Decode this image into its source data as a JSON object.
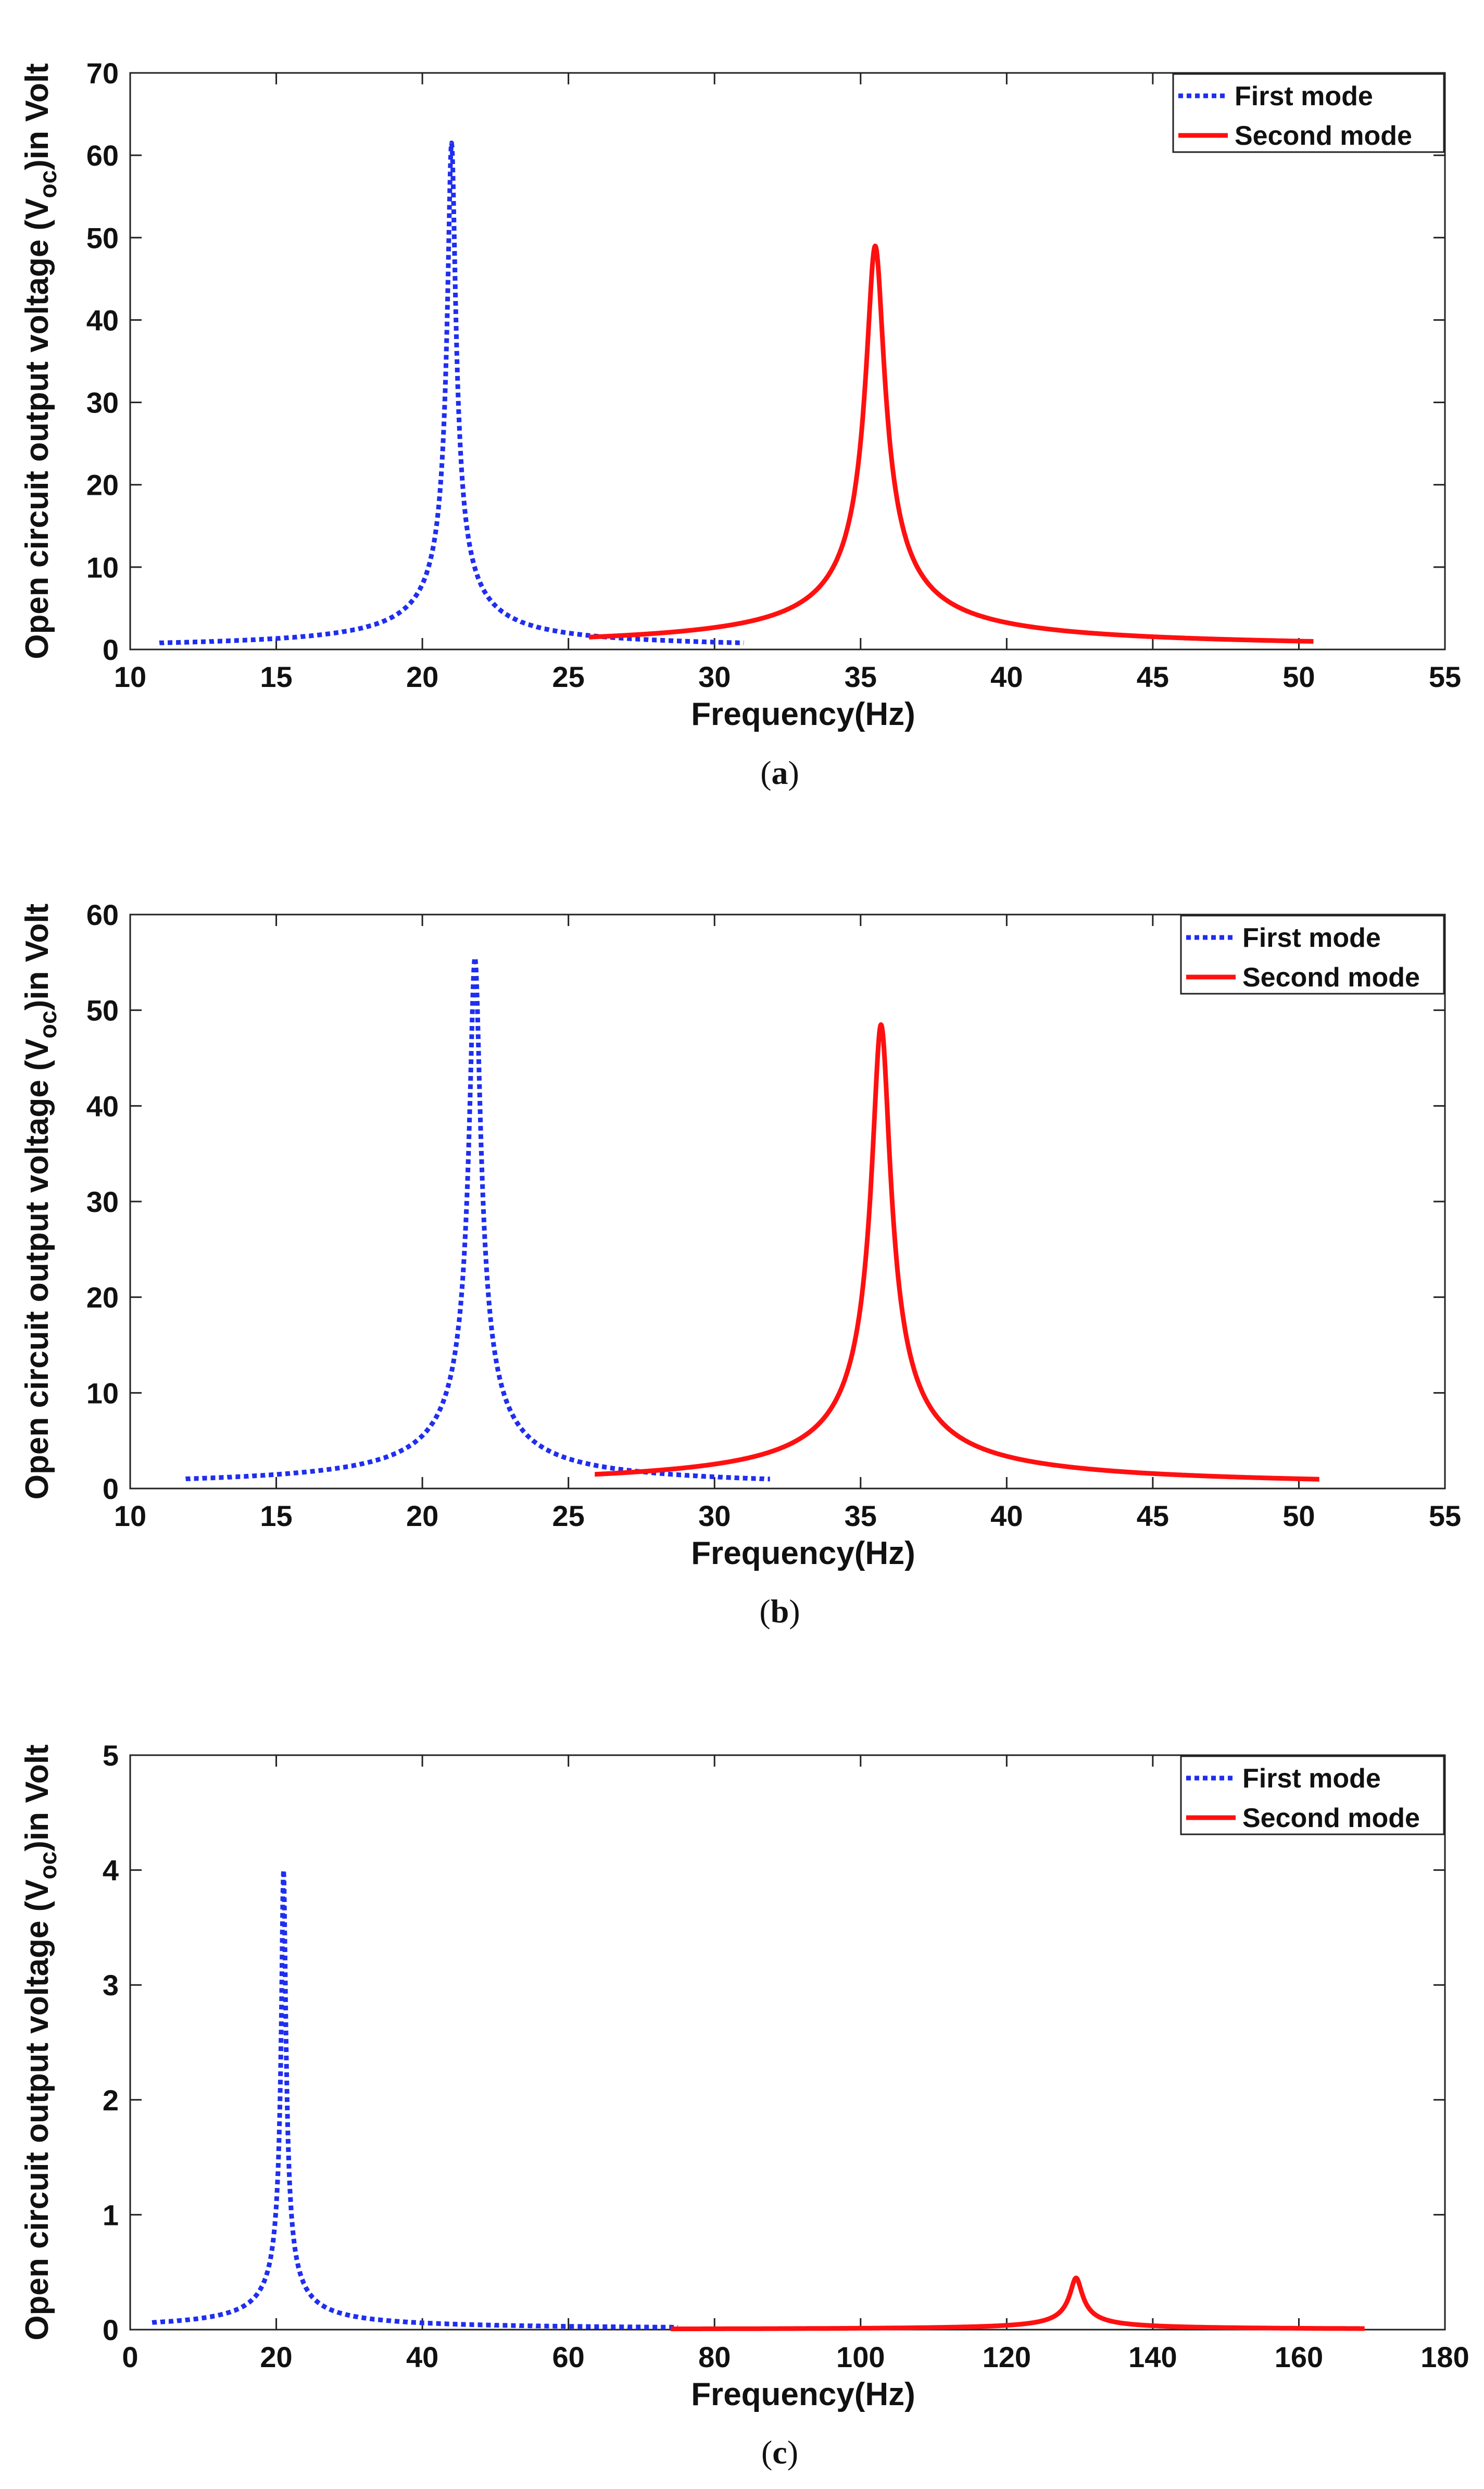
{
  "colors": {
    "first": "#1f2ef0",
    "second": "#ff1010",
    "axis": "#222222"
  },
  "chart_data": [
    {
      "type": "line",
      "panel": "a",
      "caption": {
        "open": "(",
        "letter": "a",
        "close": ")"
      },
      "xlabel": "Frequency(Hz)",
      "ylabel": {
        "prefix": "Open circuit output voltage (V",
        "sub": "oc",
        "suffix": ")in Volt"
      },
      "xlim": [
        10,
        55
      ],
      "ylim": [
        0,
        70
      ],
      "xticks": [
        10,
        15,
        20,
        25,
        30,
        35,
        40,
        45,
        50,
        55
      ],
      "yticks": [
        0,
        10,
        20,
        30,
        40,
        50,
        60,
        70
      ],
      "legend_position": "top-right",
      "series": [
        {
          "name": "First mode",
          "style": "dotted",
          "color": "#1f2ef0",
          "f0": 21.0,
          "peak": 61.5,
          "gamma": 0.13,
          "x_range": [
            11,
            31
          ]
        },
        {
          "name": "Second mode",
          "style": "solid",
          "color": "#ff1010",
          "f0": 35.5,
          "peak": 49.0,
          "gamma": 0.3,
          "x_range": [
            25.7,
            50.5
          ]
        }
      ]
    },
    {
      "type": "line",
      "panel": "b",
      "caption": {
        "open": "(",
        "letter": "b",
        "close": ")"
      },
      "xlabel": "Frequency(Hz)",
      "ylabel": {
        "prefix": "Open circuit output voltage (V",
        "sub": "oc",
        "suffix": ")in Volt"
      },
      "xlim": [
        10,
        55
      ],
      "ylim": [
        0,
        60
      ],
      "xticks": [
        10,
        15,
        20,
        25,
        30,
        35,
        40,
        45,
        50,
        55
      ],
      "yticks": [
        0,
        10,
        20,
        30,
        40,
        50,
        60
      ],
      "legend_position": "top-right",
      "series": [
        {
          "name": "First mode",
          "style": "dotted",
          "color": "#1f2ef0",
          "f0": 21.8,
          "peak": 55.5,
          "gamma": 0.18,
          "x_range": [
            11.9,
            31.9
          ]
        },
        {
          "name": "Second mode",
          "style": "solid",
          "color": "#ff1010",
          "f0": 35.7,
          "peak": 48.5,
          "gamma": 0.3,
          "x_range": [
            25.9,
            50.7
          ]
        }
      ]
    },
    {
      "type": "line",
      "panel": "c",
      "caption": {
        "open": "(",
        "letter": "c",
        "close": ")"
      },
      "xlabel": "Frequency(Hz)",
      "ylabel": {
        "prefix": "Open circuit output voltage (V",
        "sub": "oc",
        "suffix": ")in Volt"
      },
      "xlim": [
        0,
        180
      ],
      "ylim": [
        0,
        5
      ],
      "xticks": [
        0,
        20,
        40,
        60,
        80,
        100,
        120,
        140,
        160,
        180
      ],
      "yticks": [
        0,
        1,
        2,
        3,
        4,
        5
      ],
      "legend_position": "top-right",
      "series": [
        {
          "name": "First mode",
          "style": "dotted",
          "color": "#1f2ef0",
          "f0": 21.0,
          "peak": 4.0,
          "gamma": 0.28,
          "x_range": [
            3,
            75
          ]
        },
        {
          "name": "Second mode",
          "style": "solid",
          "color": "#ff1010",
          "f0": 129.5,
          "peak": 0.45,
          "gamma": 0.8,
          "x_range": [
            74,
            169
          ]
        }
      ]
    }
  ]
}
